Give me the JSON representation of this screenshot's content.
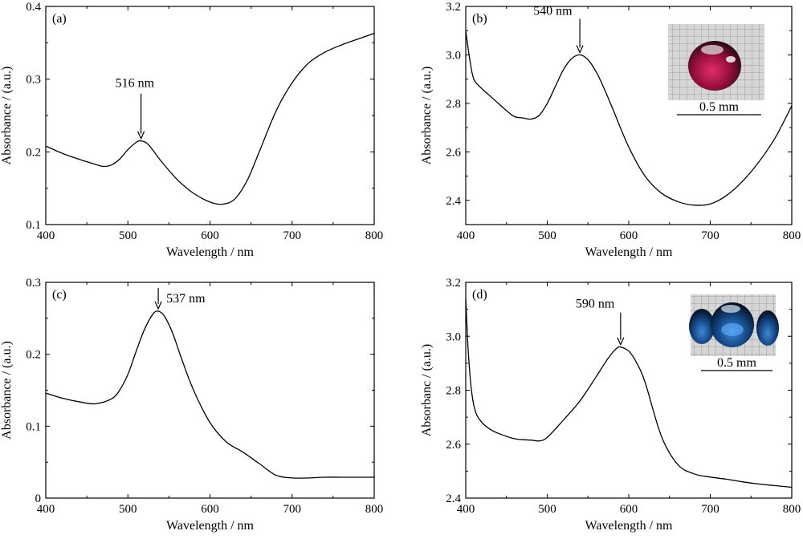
{
  "chart_data": [
    {
      "type": "line",
      "panel_label": "(a)",
      "xlabel": "Wavelength / nm",
      "ylabel": "Absorbance / (a.u.)",
      "xlim": [
        400,
        800
      ],
      "ylim": [
        0.1,
        0.4
      ],
      "xticks": [
        "400",
        "500",
        "600",
        "700",
        "800"
      ],
      "yticks": [
        "0.1",
        "0.2",
        "0.3",
        "0.4"
      ],
      "annotation": {
        "text": "516 nm",
        "x": 516,
        "y": 0.215
      },
      "series": [
        {
          "x": [
            400,
            420,
            440,
            460,
            470,
            480,
            490,
            500,
            510,
            516,
            525,
            540,
            560,
            580,
            600,
            615,
            630,
            645,
            660,
            680,
            700,
            720,
            740,
            760,
            780,
            800
          ],
          "y": [
            0.208,
            0.198,
            0.19,
            0.183,
            0.18,
            0.182,
            0.19,
            0.203,
            0.213,
            0.215,
            0.21,
            0.188,
            0.162,
            0.143,
            0.131,
            0.128,
            0.135,
            0.16,
            0.2,
            0.255,
            0.295,
            0.322,
            0.337,
            0.347,
            0.355,
            0.363
          ]
        }
      ]
    },
    {
      "type": "line",
      "panel_label": "(b)",
      "xlabel": "Wavelength / nm",
      "ylabel": "Absorbance / (a.u.)",
      "xlim": [
        400,
        800
      ],
      "ylim": [
        2.3,
        3.2
      ],
      "xticks": [
        "400",
        "500",
        "600",
        "700",
        "800"
      ],
      "yticks": [
        "2.4",
        "2.6",
        "2.8",
        "3.0",
        "3.2"
      ],
      "annotation": {
        "text": "540 nm",
        "x": 540,
        "y": 3.0
      },
      "inset": {
        "scale_label": "0.5 mm",
        "bead_color": "#b01048"
      },
      "series": [
        {
          "x": [
            400,
            405,
            410,
            420,
            430,
            440,
            450,
            460,
            470,
            480,
            490,
            500,
            510,
            520,
            530,
            540,
            550,
            560,
            570,
            580,
            600,
            620,
            640,
            660,
            680,
            700,
            720,
            740,
            760,
            780,
            800
          ],
          "y": [
            3.1,
            2.98,
            2.9,
            2.86,
            2.83,
            2.8,
            2.77,
            2.745,
            2.74,
            2.735,
            2.75,
            2.8,
            2.87,
            2.94,
            2.985,
            3.0,
            2.98,
            2.93,
            2.86,
            2.78,
            2.62,
            2.5,
            2.43,
            2.395,
            2.38,
            2.385,
            2.42,
            2.48,
            2.56,
            2.66,
            2.79
          ]
        }
      ]
    },
    {
      "type": "line",
      "panel_label": "(c)",
      "xlabel": "Wavelength / nm",
      "ylabel": "Absorbance / (a.u.)",
      "xlim": [
        400,
        800
      ],
      "ylim": [
        0,
        0.3
      ],
      "xticks": [
        "400",
        "500",
        "600",
        "700",
        "800"
      ],
      "yticks": [
        "0",
        "0.1",
        "0.2",
        "0.3"
      ],
      "annotation": {
        "text": "537 nm",
        "x": 537,
        "y": 0.26
      },
      "series": [
        {
          "x": [
            400,
            420,
            440,
            460,
            480,
            490,
            500,
            510,
            520,
            530,
            537,
            545,
            555,
            565,
            580,
            600,
            620,
            640,
            660,
            680,
            700,
            720,
            740,
            760,
            780,
            800
          ],
          "y": [
            0.146,
            0.139,
            0.134,
            0.131,
            0.138,
            0.15,
            0.172,
            0.204,
            0.234,
            0.255,
            0.26,
            0.252,
            0.228,
            0.195,
            0.15,
            0.105,
            0.078,
            0.064,
            0.048,
            0.032,
            0.028,
            0.028,
            0.029,
            0.029,
            0.029,
            0.029
          ]
        }
      ]
    },
    {
      "type": "line",
      "panel_label": "(d)",
      "xlabel": "Wavelength / nm",
      "ylabel": "Absorbanc / (a.u.)",
      "xlim": [
        400,
        800
      ],
      "ylim": [
        2.4,
        3.2
      ],
      "xticks": [
        "400",
        "500",
        "600",
        "700",
        "800"
      ],
      "yticks": [
        "2.4",
        "2.6",
        "2.8",
        "3.0",
        "3.2"
      ],
      "annotation": {
        "text": "590 nm",
        "x": 590,
        "y": 2.96
      },
      "inset": {
        "scale_label": "0.5 mm",
        "bead_color": "#1a4a9a"
      },
      "series": [
        {
          "x": [
            400,
            403,
            407,
            412,
            420,
            430,
            440,
            460,
            480,
            490,
            500,
            520,
            540,
            560,
            575,
            585,
            590,
            600,
            610,
            620,
            640,
            660,
            680,
            700,
            720,
            740,
            760,
            780,
            800
          ],
          "y": [
            3.14,
            2.95,
            2.8,
            2.72,
            2.68,
            2.655,
            2.64,
            2.62,
            2.615,
            2.612,
            2.625,
            2.69,
            2.76,
            2.85,
            2.92,
            2.955,
            2.96,
            2.945,
            2.9,
            2.83,
            2.63,
            2.525,
            2.49,
            2.478,
            2.47,
            2.46,
            2.452,
            2.446,
            2.44
          ]
        }
      ]
    }
  ]
}
